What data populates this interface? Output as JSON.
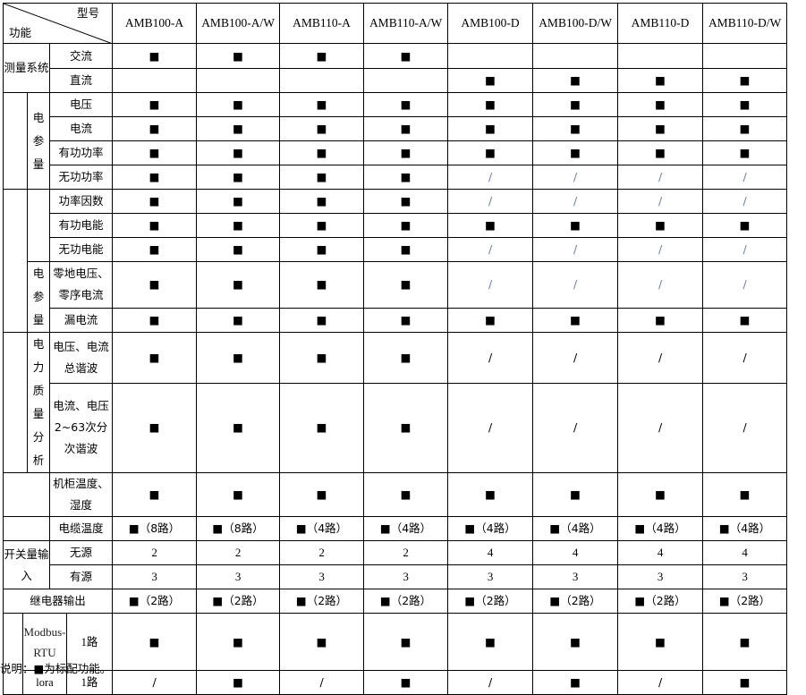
{
  "header": {
    "model_label": "型号",
    "function_label": "功能"
  },
  "models": [
    "AMB100-A",
    "AMB100-A/W",
    "AMB110-A",
    "AMB110-A/W",
    "AMB100-D",
    "AMB100-D/W",
    "AMB110-D",
    "AMB110-D/W"
  ],
  "groups": {
    "measure_system": "测量系统",
    "elec_params_1": "电参量",
    "elec_params_2": "电参量",
    "power_quality": "电力质量分析",
    "switch_input": "开关量输入",
    "modbus": "Modbus-RTU",
    "lora": "lora"
  },
  "rows": [
    {
      "label": "交流",
      "values": [
        "■",
        "■",
        "■",
        "■",
        "",
        "",
        "",
        ""
      ]
    },
    {
      "label": "直流",
      "values": [
        "",
        "",
        "",
        "",
        "■",
        "■",
        "■",
        "■"
      ]
    },
    {
      "label": "电压",
      "values": [
        "■",
        "■",
        "■",
        "■",
        "■",
        "■",
        "■",
        "■"
      ]
    },
    {
      "label": "电流",
      "values": [
        "■",
        "■",
        "■",
        "■",
        "■",
        "■",
        "■",
        "■"
      ]
    },
    {
      "label": "有功功率",
      "values": [
        "■",
        "■",
        "■",
        "■",
        "■",
        "■",
        "■",
        "■"
      ]
    },
    {
      "label": "无功功率",
      "values": [
        "■",
        "■",
        "■",
        "■",
        "/",
        "/",
        "/",
        "/"
      ]
    },
    {
      "label": "功率因数",
      "values": [
        "■",
        "■",
        "■",
        "■",
        "/",
        "/",
        "/",
        "/"
      ]
    },
    {
      "label": "有功电能",
      "values": [
        "■",
        "■",
        "■",
        "■",
        "■",
        "■",
        "■",
        "■"
      ]
    },
    {
      "label": "无功电能",
      "values": [
        "■",
        "■",
        "■",
        "■",
        "/",
        "/",
        "/",
        "/"
      ]
    },
    {
      "label": "零地电压、零序电流",
      "values": [
        "■",
        "■",
        "■",
        "■",
        "/",
        "/",
        "/",
        "/"
      ]
    },
    {
      "label": "漏电流",
      "values": [
        "■",
        "■",
        "■",
        "■",
        "■",
        "■",
        "■",
        "■"
      ]
    },
    {
      "label": "电压、电流总谐波",
      "values": [
        "■",
        "■",
        "■",
        "■",
        "/",
        "/",
        "/",
        "/"
      ]
    },
    {
      "label": "电流、电压2~63次分次谐波",
      "values": [
        "■",
        "■",
        "■",
        "■",
        "/",
        "/",
        "/",
        "/"
      ]
    },
    {
      "label": "机柜温度、湿度",
      "values": [
        "■",
        "■",
        "■",
        "■",
        "■",
        "■",
        "■",
        "■"
      ]
    },
    {
      "label": "电缆温度",
      "values": [
        "■（8路）",
        "■（8路）",
        "■（4路）",
        "■（4路）",
        "■（4路）",
        "■（4路）",
        "■（4路）",
        "■（4路）"
      ]
    },
    {
      "label": "无源",
      "values": [
        "2",
        "2",
        "2",
        "2",
        "4",
        "4",
        "4",
        "4"
      ]
    },
    {
      "label": "有源",
      "values": [
        "3",
        "3",
        "3",
        "3",
        "3",
        "3",
        "3",
        "3"
      ]
    },
    {
      "label": "继电器输出",
      "values": [
        "■（2路）",
        "■（2路）",
        "■（2路）",
        "■（2路）",
        "■（2路）",
        "■（2路）",
        "■（2路）",
        "■（2路）"
      ]
    },
    {
      "label": "1路",
      "values": [
        "■",
        "■",
        "■",
        "■",
        "■",
        "■",
        "■",
        "■"
      ]
    },
    {
      "label": "1路",
      "values": [
        "/",
        "■",
        "/",
        "■",
        "/",
        "■",
        "/",
        "■"
      ]
    }
  ],
  "note": "说明：■为标配功能。"
}
